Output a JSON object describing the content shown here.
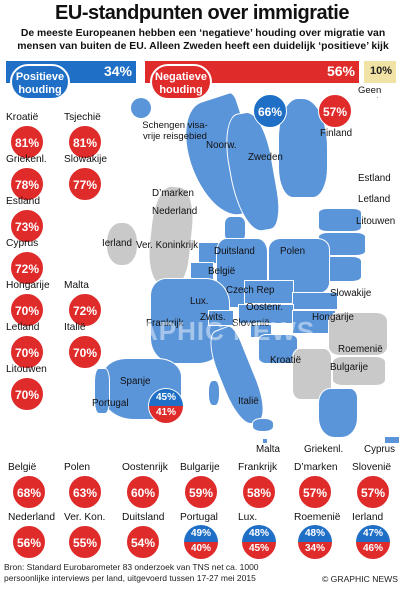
{
  "title": "EU-standpunten over immigratie",
  "subtitle": "De meeste Europeanen hebben een ‘negatieve’ houding over migratie van mensen van buiten de EU. Alleen Zweden heeft een duidelijk ‘positieve’ kijk",
  "summary": {
    "positive": {
      "label": "Positieve houding",
      "value": "34%"
    },
    "negative": {
      "label": "Negatieve houding",
      "value": "56%"
    },
    "no_opinion": {
      "label": "Geen mening",
      "value": "10%"
    }
  },
  "legend": {
    "schengen": "Schengen visa-vrije reisgebied"
  },
  "map_labels": [
    "Finland",
    "Noorw.",
    "Zweden",
    "Estland",
    "Letland",
    "Litouwen",
    "D’marken",
    "Nederland",
    "Ierland",
    "Ver. Koninkrijk",
    "Duitsland",
    "Polen",
    "België",
    "Lux.",
    "Czech Rep",
    "Slowakije",
    "Oostenr.",
    "Hongarije",
    "Frankrijk",
    "Zwits.",
    "Slovenië",
    "Roemenië",
    "Kroatië",
    "Bulgarije",
    "Italië",
    "Spanje",
    "Portugal",
    "Griekenl.",
    "Malta",
    "Cyprus"
  ],
  "left_column": [
    {
      "country": "Kroatië",
      "value": "81%"
    },
    {
      "country": "Griekenl.",
      "value": "78%"
    },
    {
      "country": "Estland",
      "value": "73%"
    },
    {
      "country": "Cyprus",
      "value": "72%"
    },
    {
      "country": "Hongarije",
      "value": "70%"
    },
    {
      "country": "Letland",
      "value": "70%"
    },
    {
      "country": "Litouwen",
      "value": "70%"
    }
  ],
  "second_column": [
    {
      "country": "Tsjechië",
      "value": "81%"
    },
    {
      "country": "Slowakije",
      "value": "77%"
    },
    {
      "country": "Malta",
      "value": "72%"
    },
    {
      "country": "Italië",
      "value": "70%"
    }
  ],
  "map_circles": {
    "sweden": {
      "value": "66%"
    },
    "finland": {
      "value": "57%"
    },
    "spain": {
      "positive": "45%",
      "negative": "41%"
    }
  },
  "bottom_row1": [
    {
      "country": "België",
      "value": "68%"
    },
    {
      "country": "Polen",
      "value": "63%"
    },
    {
      "country": "Oostenrijk",
      "value": "60%"
    },
    {
      "country": "Bulgarije",
      "value": "59%"
    },
    {
      "country": "Frankrijk",
      "value": "58%"
    },
    {
      "country": "D’marken",
      "value": "57%"
    },
    {
      "country": "Slovenië",
      "value": "57%"
    }
  ],
  "bottom_row2": [
    {
      "country": "Nederland",
      "value": "56%"
    },
    {
      "country": "Ver. Kon.",
      "value": "55%"
    },
    {
      "country": "Duitsland",
      "value": "54%"
    },
    {
      "country": "Portugal",
      "positive": "49%",
      "negative": "40%"
    },
    {
      "country": "Lux.",
      "positive": "48%",
      "negative": "45%"
    },
    {
      "country": "Roemenië",
      "positive": "48%",
      "negative": "34%"
    },
    {
      "country": "Ierland",
      "positive": "47%",
      "negative": "46%"
    }
  ],
  "watermark": "GRAPHIC NEWS",
  "source": "Bron: Standard Eurobarometer 83 onderzoek van TNS net ca. 1000 persoonlijke interviews per land, uitgevoerd tussen 17-27 mei 2015",
  "credit": "© GRAPHIC NEWS",
  "colors": {
    "positive": "#1f6fc6",
    "negative": "#e02b2b",
    "schengen": "#5b95d9",
    "no_opinion": "#f1e2a6",
    "non_schengen": "#c9c9c9"
  }
}
